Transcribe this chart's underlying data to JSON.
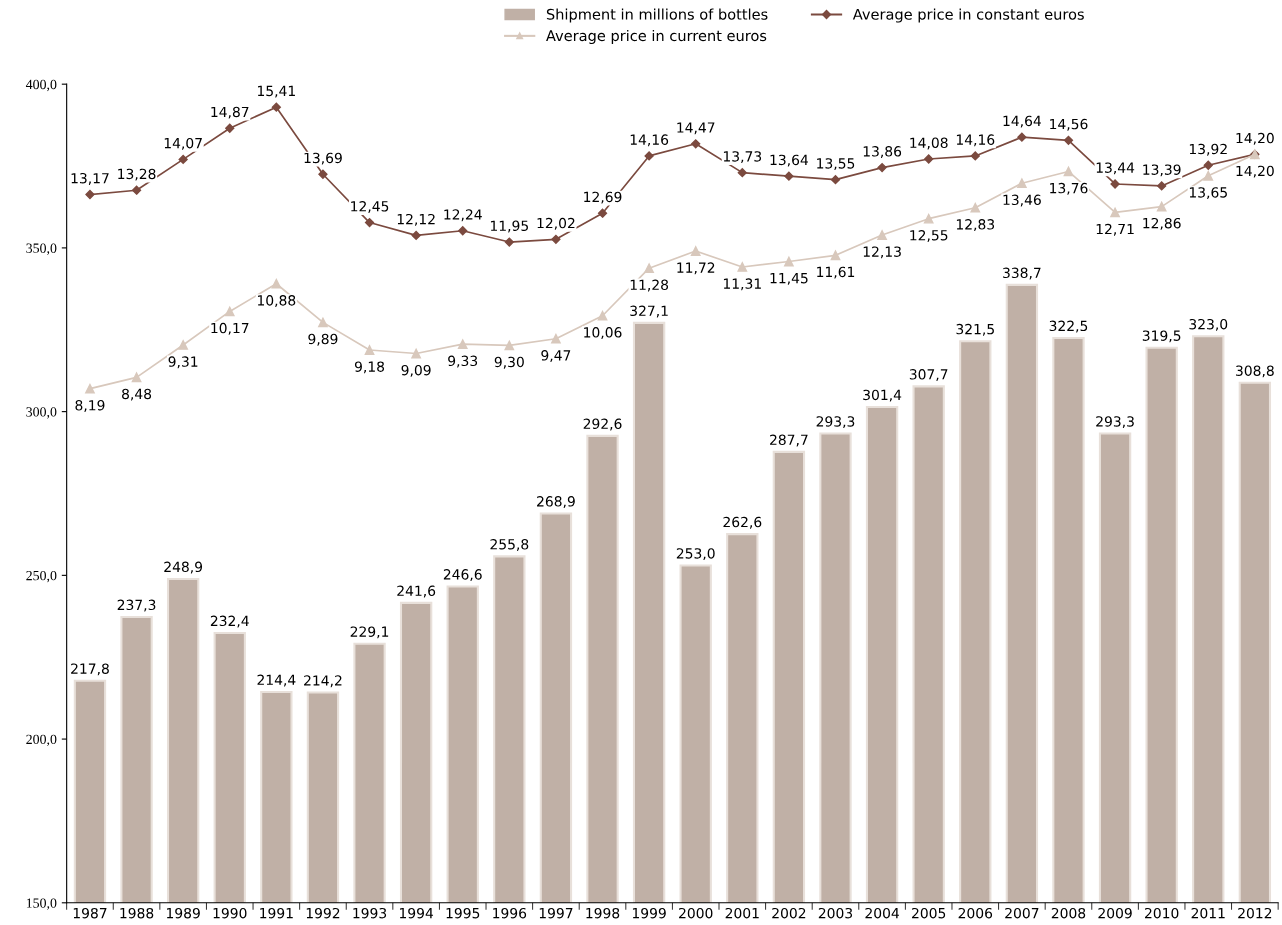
{
  "chart_data": {
    "type": "bar",
    "categories": [
      "1987",
      "1988",
      "1989",
      "1990",
      "1991",
      "1992",
      "1993",
      "1994",
      "1995",
      "1996",
      "1997",
      "1998",
      "1999",
      "2000",
      "2001",
      "2002",
      "2003",
      "2004",
      "2005",
      "2006",
      "2007",
      "2008",
      "2009",
      "2010",
      "2011",
      "2012"
    ],
    "series": [
      {
        "name": "Shipment in millions of bottles",
        "color": "#c0b0a6",
        "values": [
          217.8,
          237.3,
          248.9,
          232.4,
          214.4,
          214.2,
          229.1,
          241.6,
          246.6,
          255.8,
          268.9,
          292.6,
          327.1,
          253.0,
          262.6,
          287.7,
          293.3,
          301.4,
          307.7,
          321.5,
          338.7,
          322.5,
          293.3,
          319.5,
          323.0,
          308.8
        ],
        "value_labels": [
          "217,8",
          "237,3",
          "248,9",
          "232,4",
          "214,4",
          "214,2",
          "229,1",
          "241,6",
          "246,6",
          "255,8",
          "268,9",
          "292,6",
          "327,1",
          "253,0",
          "262,6",
          "287,7",
          "293,3",
          "301,4",
          "307,7",
          "321,5",
          "338,7",
          "322,5",
          "293,3",
          "319,5",
          "323,0",
          "308,8"
        ]
      },
      {
        "name": "Average price in constant euros",
        "type": "line",
        "axis": "y2",
        "marker": "diamond",
        "color": "#7b4a3f",
        "values": [
          13.17,
          13.28,
          14.07,
          14.87,
          15.41,
          13.69,
          12.45,
          12.12,
          12.24,
          11.95,
          12.02,
          12.69,
          14.16,
          14.47,
          13.73,
          13.64,
          13.55,
          13.86,
          14.08,
          14.16,
          14.64,
          14.56,
          13.44,
          13.39,
          13.92,
          14.2
        ],
        "value_labels": [
          "13,17",
          "13,28",
          "14,07",
          "14,87",
          "15,41",
          "13,69",
          "12,45",
          "12,12",
          "12,24",
          "11,95",
          "12,02",
          "12,69",
          "14,16",
          "14,47",
          "13,73",
          "13,64",
          "13,55",
          "13,86",
          "14,08",
          "14,16",
          "14,64",
          "14,56",
          "13,44",
          "13,39",
          "13,92",
          "14,20"
        ]
      },
      {
        "name": "Average price in current euros",
        "type": "line",
        "axis": "y2",
        "marker": "triangle",
        "color": "#d8c8bc",
        "values": [
          8.19,
          8.48,
          9.31,
          10.17,
          10.88,
          9.89,
          9.18,
          9.09,
          9.33,
          9.3,
          9.47,
          10.06,
          11.28,
          11.72,
          11.31,
          11.45,
          11.61,
          12.13,
          12.55,
          12.83,
          13.46,
          13.76,
          12.71,
          12.86,
          13.65,
          14.2
        ],
        "value_labels": [
          "8,19",
          "8,48",
          "9,31",
          "10,17",
          "10,88",
          "9,89",
          "9,18",
          "9,09",
          "9,33",
          "9,30",
          "9,47",
          "10,06",
          "11,28",
          "11,72",
          "11,31",
          "11,45",
          "11,61",
          "12,13",
          "12,55",
          "12,83",
          "13,46",
          "13,76",
          "12,71",
          "12,86",
          "13,65",
          "14,20"
        ]
      }
    ],
    "ylim": [
      150,
      400
    ],
    "yticks": [
      {
        "value": 150,
        "label": "150,0"
      },
      {
        "value": 200,
        "label": "200,0"
      },
      {
        "value": 250,
        "label": "250,0"
      },
      {
        "value": 300,
        "label": "300,0"
      },
      {
        "value": 350,
        "label": "350,0"
      },
      {
        "value": 400,
        "label": "400,0"
      }
    ],
    "y2lim": [
      -5,
      16
    ],
    "grid": false,
    "legend": "top"
  }
}
